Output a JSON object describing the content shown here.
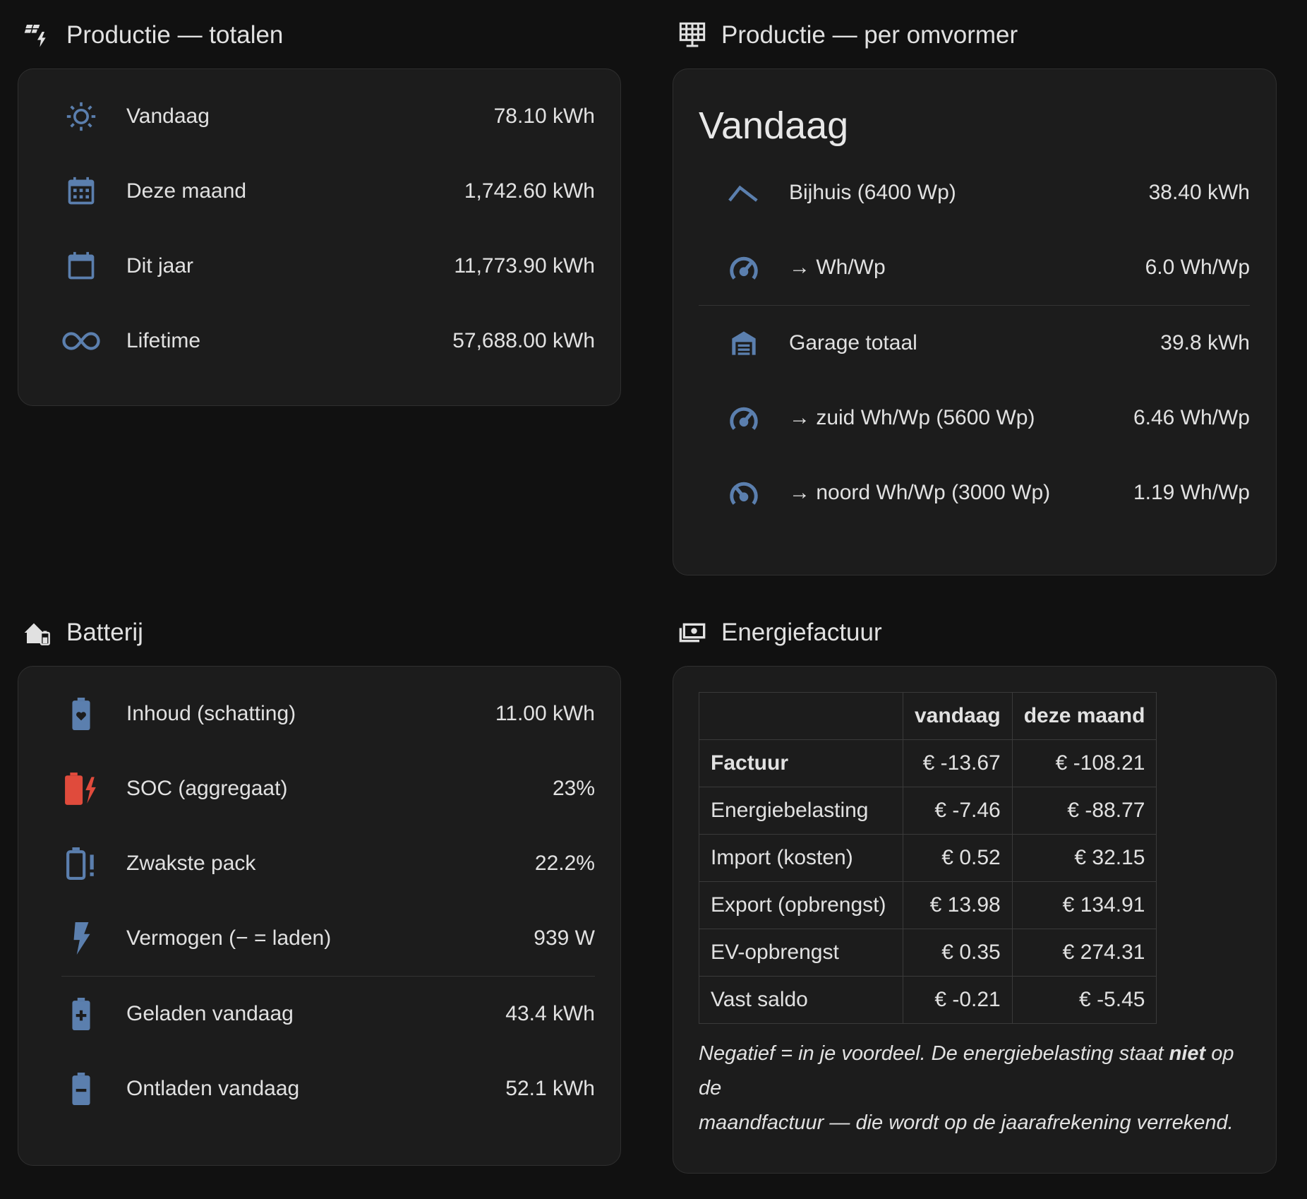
{
  "colors": {
    "icon": "#5b7fae",
    "danger": "#e04b3c",
    "card": "#1c1c1c",
    "bg": "#111111"
  },
  "totals": {
    "title": "Productie — totalen",
    "title_icon": "solar-power-variant-icon",
    "rows": [
      {
        "icon": "sun-icon",
        "label": "Vandaag",
        "value": "78.10 kWh"
      },
      {
        "icon": "calendar-month-icon",
        "label": "Deze maand",
        "value": "1,742.60 kWh"
      },
      {
        "icon": "calendar-blank-icon",
        "label": "Dit jaar",
        "value": "11,773.90 kWh"
      },
      {
        "icon": "infinity-icon",
        "label": "Lifetime",
        "value": "57,688.00 kWh"
      }
    ]
  },
  "per_inverter": {
    "title": "Productie — per omvormer",
    "title_icon": "solar-panel-icon",
    "heading": "Vandaag",
    "rows": [
      {
        "icon": "roof-icon",
        "label": "Bijhuis (6400 Wp)",
        "value": "38.40 kWh"
      },
      {
        "icon": "gauge-icon",
        "label": "→ Wh/Wp",
        "value": "6.0 Wh/Wp"
      },
      {
        "icon": "garage-icon",
        "label": "Garage totaal",
        "value": "39.8 kWh"
      },
      {
        "icon": "gauge-icon",
        "label": "→ zuid Wh/Wp (5600 Wp)",
        "value": "6.46 Wh/Wp"
      },
      {
        "icon": "gauge-low-icon",
        "label": "→ noord Wh/Wp (3000 Wp)",
        "value": "1.19 Wh/Wp"
      }
    ]
  },
  "battery": {
    "title": "Batterij",
    "title_icon": "home-battery-icon",
    "rows": [
      {
        "icon": "battery-heart-icon",
        "label": "Inhoud (schatting)",
        "value": "11.00 kWh"
      },
      {
        "icon": "battery-charging-alert-icon",
        "label": "SOC (aggregaat)",
        "value": "23%"
      },
      {
        "icon": "battery-alert-icon",
        "label": "Zwakste pack",
        "value": "22.2%"
      },
      {
        "icon": "lightning-bolt-icon",
        "label": "Vermogen (− = laden)",
        "value": "939 W"
      },
      {
        "icon": "battery-plus-icon",
        "label": "Geladen vandaag",
        "value": "43.4 kWh"
      },
      {
        "icon": "battery-minus-icon",
        "label": "Ontladen vandaag",
        "value": "52.1 kWh"
      }
    ]
  },
  "bill": {
    "title": "Energiefactuur",
    "title_icon": "cash-icon",
    "headers": [
      "",
      "vandaag",
      "deze maand"
    ],
    "rows": [
      {
        "label": "Factuur",
        "today": "€ -13.67",
        "month": "€ -108.21",
        "bold": true
      },
      {
        "label": "Energiebelasting",
        "today": "€ -7.46",
        "month": "€ -88.77"
      },
      {
        "label": "Import (kosten)",
        "today": "€ 0.52",
        "month": "€ 32.15"
      },
      {
        "label": "Export (opbrengst)",
        "today": "€ 13.98",
        "month": "€ 134.91"
      },
      {
        "label": "EV-opbrengst",
        "today": "€ 0.35",
        "month": "€ 274.31"
      },
      {
        "label": "Vast saldo",
        "today": "€ -0.21",
        "month": "€ -5.45"
      }
    ],
    "note_part1": "Negatief = in je voordeel. De energiebelasting staat ",
    "note_bold": "niet",
    "note_part2": " op de",
    "note_line2": "maandfactuur — die wordt op de jaarafrekening verrekend."
  }
}
